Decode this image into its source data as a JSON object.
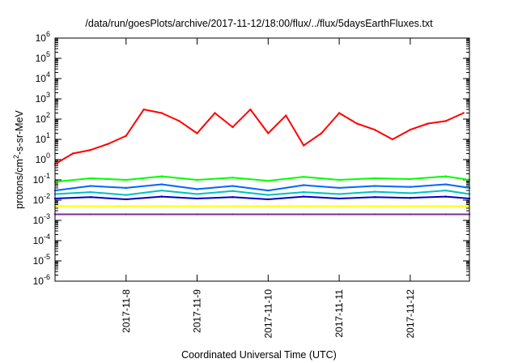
{
  "chart_data": {
    "type": "line",
    "title": "/data/run/goesPlots/archive/2017-11-12/18:00/flux/../flux/5daysEarthFluxes.txt",
    "xlabel": "Coordinated Universal Time (UTC)",
    "ylabel": "protons/cm²-s-sr-MeV",
    "yscale": "log",
    "ylim": [
      1e-06,
      1000000.0
    ],
    "y_ticks": [
      {
        "value": 1e-06,
        "base": "10",
        "exp": "-6"
      },
      {
        "value": 1e-05,
        "base": "10",
        "exp": "-5"
      },
      {
        "value": 0.0001,
        "base": "10",
        "exp": "-4"
      },
      {
        "value": 0.001,
        "base": "10",
        "exp": "-3"
      },
      {
        "value": 0.01,
        "base": "10",
        "exp": "-2"
      },
      {
        "value": 0.1,
        "base": "10",
        "exp": "-1"
      },
      {
        "value": 1,
        "base": "10",
        "exp": "0"
      },
      {
        "value": 10,
        "base": "10",
        "exp": "1"
      },
      {
        "value": 100,
        "base": "10",
        "exp": "2"
      },
      {
        "value": 1000,
        "base": "10",
        "exp": "3"
      },
      {
        "value": 10000,
        "base": "10",
        "exp": "4"
      },
      {
        "value": 100000,
        "base": "10",
        "exp": "5"
      },
      {
        "value": 1000000,
        "base": "10",
        "exp": "6"
      }
    ],
    "xlim": [
      "2017-11-07 00:00",
      "2017-11-12 20:00"
    ],
    "x_ticks": [
      "2017-11-8",
      "2017-11-9",
      "2017-11-10",
      "2017-11-11",
      "2017-11-12"
    ],
    "x_tick_dates": [
      "2017-11-08",
      "2017-11-09",
      "2017-11-10",
      "2017-11-11",
      "2017-11-12"
    ],
    "grid": false,
    "legend": "none",
    "series": [
      {
        "color": "#ff0000",
        "x": [
          "2017-11-07 00:00",
          "2017-11-07 06:00",
          "2017-11-07 12:00",
          "2017-11-07 18:00",
          "2017-11-08 00:00",
          "2017-11-08 06:00",
          "2017-11-08 12:00",
          "2017-11-08 18:00",
          "2017-11-09 00:00",
          "2017-11-09 06:00",
          "2017-11-09 12:00",
          "2017-11-09 18:00",
          "2017-11-10 00:00",
          "2017-11-10 06:00",
          "2017-11-10 12:00",
          "2017-11-10 18:00",
          "2017-11-11 00:00",
          "2017-11-11 06:00",
          "2017-11-11 12:00",
          "2017-11-11 18:00",
          "2017-11-12 00:00",
          "2017-11-12 06:00",
          "2017-11-12 12:00",
          "2017-11-12 18:00"
        ],
        "y": [
          0.6,
          2,
          3,
          6,
          15,
          300,
          200,
          80,
          20,
          200,
          40,
          300,
          20,
          150,
          5,
          20,
          200,
          60,
          30,
          10,
          30,
          60,
          80,
          200
        ]
      },
      {
        "color": "#00ff00",
        "x": [
          "2017-11-07 00:00",
          "2017-11-07 12:00",
          "2017-11-08 00:00",
          "2017-11-08 12:00",
          "2017-11-09 00:00",
          "2017-11-09 12:00",
          "2017-11-10 00:00",
          "2017-11-10 12:00",
          "2017-11-11 00:00",
          "2017-11-11 12:00",
          "2017-11-12 00:00",
          "2017-11-12 12:00",
          "2017-11-12 20:00"
        ],
        "y": [
          0.08,
          0.12,
          0.1,
          0.15,
          0.1,
          0.13,
          0.09,
          0.14,
          0.1,
          0.12,
          0.11,
          0.15,
          0.1
        ]
      },
      {
        "color": "#0066ff",
        "x": [
          "2017-11-07 00:00",
          "2017-11-07 12:00",
          "2017-11-08 00:00",
          "2017-11-08 12:00",
          "2017-11-09 00:00",
          "2017-11-09 12:00",
          "2017-11-10 00:00",
          "2017-11-10 12:00",
          "2017-11-11 00:00",
          "2017-11-11 12:00",
          "2017-11-12 00:00",
          "2017-11-12 12:00",
          "2017-11-12 20:00"
        ],
        "y": [
          0.03,
          0.05,
          0.04,
          0.06,
          0.035,
          0.05,
          0.03,
          0.055,
          0.04,
          0.05,
          0.045,
          0.06,
          0.04
        ]
      },
      {
        "color": "#00c0c0",
        "x": [
          "2017-11-07 00:00",
          "2017-11-07 12:00",
          "2017-11-08 00:00",
          "2017-11-08 12:00",
          "2017-11-09 00:00",
          "2017-11-09 12:00",
          "2017-11-10 00:00",
          "2017-11-10 12:00",
          "2017-11-11 00:00",
          "2017-11-11 12:00",
          "2017-11-12 00:00",
          "2017-11-12 12:00",
          "2017-11-12 20:00"
        ],
        "y": [
          0.02,
          0.025,
          0.018,
          0.03,
          0.02,
          0.028,
          0.018,
          0.025,
          0.02,
          0.026,
          0.022,
          0.03,
          0.02
        ]
      },
      {
        "color": "#0000cc",
        "x": [
          "2017-11-07 00:00",
          "2017-11-07 12:00",
          "2017-11-08 00:00",
          "2017-11-08 12:00",
          "2017-11-09 00:00",
          "2017-11-09 12:00",
          "2017-11-10 00:00",
          "2017-11-10 12:00",
          "2017-11-11 00:00",
          "2017-11-11 12:00",
          "2017-11-12 00:00",
          "2017-11-12 12:00",
          "2017-11-12 20:00"
        ],
        "y": [
          0.012,
          0.014,
          0.011,
          0.015,
          0.012,
          0.014,
          0.011,
          0.015,
          0.012,
          0.014,
          0.013,
          0.015,
          0.012
        ]
      },
      {
        "color": "#ffff00",
        "x": [
          "2017-11-07 00:00",
          "2017-11-07 12:00",
          "2017-11-08 00:00",
          "2017-11-08 12:00",
          "2017-11-09 00:00",
          "2017-11-09 12:00",
          "2017-11-10 00:00",
          "2017-11-10 12:00",
          "2017-11-11 00:00",
          "2017-11-11 12:00",
          "2017-11-12 00:00",
          "2017-11-12 12:00",
          "2017-11-12 20:00"
        ],
        "y": [
          0.005,
          0.005,
          0.005,
          0.005,
          0.005,
          0.005,
          0.005,
          0.005,
          0.005,
          0.005,
          0.005,
          0.005,
          0.005
        ]
      },
      {
        "color": "#7b2d8e",
        "x": [
          "2017-11-07 00:00",
          "2017-11-07 12:00",
          "2017-11-08 00:00",
          "2017-11-08 12:00",
          "2017-11-09 00:00",
          "2017-11-09 12:00",
          "2017-11-10 00:00",
          "2017-11-10 12:00",
          "2017-11-11 00:00",
          "2017-11-11 12:00",
          "2017-11-12 00:00",
          "2017-11-12 12:00",
          "2017-11-12 20:00"
        ],
        "y": [
          0.002,
          0.002,
          0.002,
          0.002,
          0.002,
          0.002,
          0.002,
          0.002,
          0.002,
          0.002,
          0.002,
          0.002,
          0.002
        ]
      }
    ]
  }
}
